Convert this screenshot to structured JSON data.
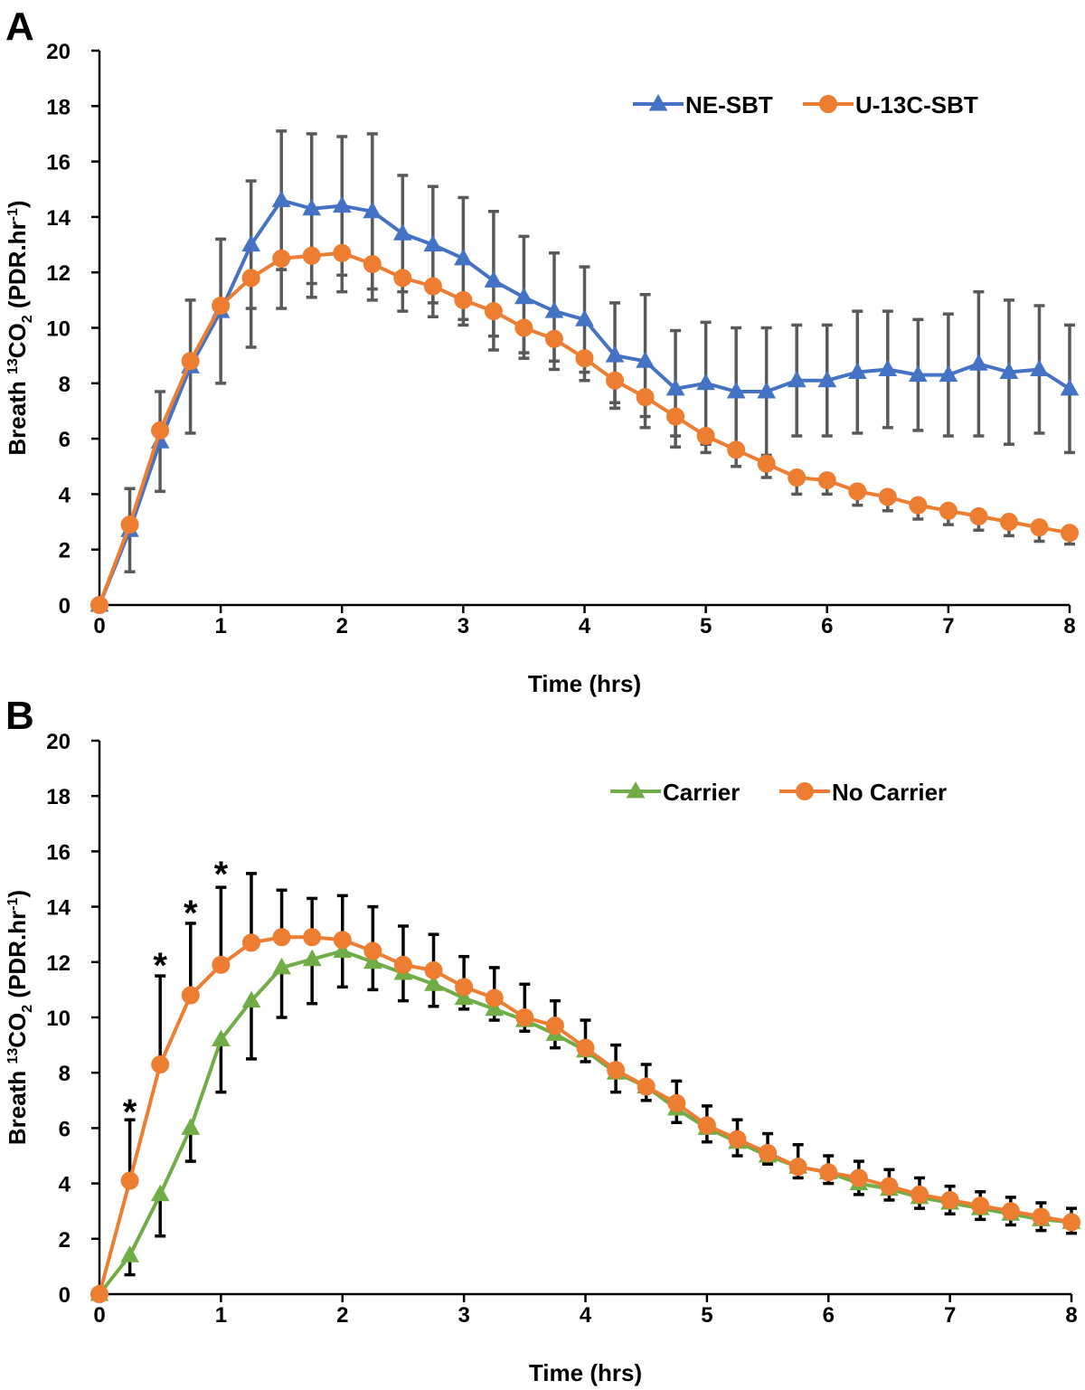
{
  "chart_data": [
    {
      "panel": "A",
      "type": "line",
      "xlabel": "Time (hrs)",
      "ylabel_prefix": "Breath ",
      "ylabel_sup": "13",
      "ylabel_main": "CO",
      "ylabel_sub": "2",
      "ylabel_unit": " (PDR.hr",
      "ylabel_unit_sup": "-1",
      "ylabel_close": ")",
      "xlim": [
        0,
        8
      ],
      "ylim": [
        0,
        20
      ],
      "xticks": [
        0,
        1,
        2,
        3,
        4,
        5,
        6,
        7,
        8
      ],
      "yticks": [
        0,
        2,
        4,
        6,
        8,
        10,
        12,
        14,
        16,
        18,
        20
      ],
      "x": [
        0,
        0.25,
        0.5,
        0.75,
        1,
        1.25,
        1.5,
        1.75,
        2,
        2.25,
        2.5,
        2.75,
        3,
        3.25,
        3.5,
        3.75,
        4,
        4.25,
        4.5,
        4.75,
        5,
        5.25,
        5.5,
        5.75,
        6,
        6.25,
        6.5,
        6.75,
        7,
        7.25,
        7.5,
        7.75,
        8
      ],
      "legend_position": "top-right",
      "error_color": "#595959",
      "annotations": [],
      "series": [
        {
          "name": "NE-SBT",
          "color": "#4472C4",
          "marker": "triangle",
          "values": [
            0,
            2.7,
            5.9,
            8.6,
            10.6,
            13.0,
            14.6,
            14.3,
            14.4,
            14.2,
            13.4,
            13.0,
            12.5,
            11.7,
            11.1,
            10.6,
            10.3,
            9.0,
            8.8,
            7.8,
            8.0,
            7.7,
            7.7,
            8.1,
            8.1,
            8.4,
            8.5,
            8.3,
            8.3,
            8.7,
            8.4,
            8.5,
            7.8
          ],
          "errors": [
            0,
            1.5,
            1.8,
            2.4,
            2.6,
            2.3,
            2.5,
            2.7,
            2.5,
            2.8,
            2.1,
            2.1,
            2.2,
            2.5,
            2.2,
            2.1,
            1.9,
            1.9,
            2.4,
            2.1,
            2.2,
            2.3,
            2.3,
            2.0,
            2.0,
            2.2,
            2.1,
            2.0,
            2.2,
            2.6,
            2.6,
            2.3,
            2.3
          ],
          "error_dir": "both"
        },
        {
          "name": "U-13C-SBT",
          "color": "#ED7D31",
          "marker": "circle",
          "values": [
            0,
            2.9,
            6.3,
            8.8,
            10.8,
            11.8,
            12.5,
            12.6,
            12.7,
            12.3,
            11.8,
            11.5,
            11.0,
            10.6,
            10.0,
            9.6,
            8.9,
            8.1,
            7.5,
            6.8,
            6.1,
            5.6,
            5.1,
            4.6,
            4.5,
            4.1,
            3.9,
            3.6,
            3.4,
            3.2,
            3.0,
            2.8,
            2.6
          ],
          "errors": [
            0,
            0,
            0,
            0,
            0,
            2.5,
            1.8,
            1.5,
            1.4,
            1.3,
            1.2,
            1.1,
            0.9,
            0.9,
            0.9,
            0.8,
            0.8,
            0.8,
            0.7,
            0.7,
            0.6,
            0.6,
            0.5,
            0.6,
            0.5,
            0.5,
            0.5,
            0.5,
            0.5,
            0.5,
            0.5,
            0.5,
            0.4
          ],
          "error_dir": "down"
        }
      ]
    },
    {
      "panel": "B",
      "type": "line",
      "xlabel": "Time (hrs)",
      "ylabel_prefix": "Breath ",
      "ylabel_sup": "13",
      "ylabel_main": "CO",
      "ylabel_sub": "2",
      "ylabel_unit": " (PDR.hr",
      "ylabel_unit_sup": "-1",
      "ylabel_close": ")",
      "xlim": [
        0,
        8
      ],
      "ylim": [
        0,
        20
      ],
      "xticks": [
        0,
        1,
        2,
        3,
        4,
        5,
        6,
        7,
        8
      ],
      "yticks": [
        0,
        2,
        4,
        6,
        8,
        10,
        12,
        14,
        16,
        18,
        20
      ],
      "x": [
        0,
        0.25,
        0.5,
        0.75,
        1,
        1.25,
        1.5,
        1.75,
        2,
        2.25,
        2.5,
        2.75,
        3,
        3.25,
        3.5,
        3.75,
        4,
        4.25,
        4.5,
        4.75,
        5,
        5.25,
        5.5,
        5.75,
        6,
        6.25,
        6.5,
        6.75,
        7,
        7.25,
        7.5,
        7.75,
        8
      ],
      "legend_position": "top-right",
      "error_color": "#000000",
      "annotations": [
        {
          "text": "*",
          "x": 0.25,
          "y": 6.4
        },
        {
          "text": "*",
          "x": 0.5,
          "y": 11.7
        },
        {
          "text": "*",
          "x": 0.75,
          "y": 13.6
        },
        {
          "text": "*",
          "x": 1.0,
          "y": 15.0
        }
      ],
      "series": [
        {
          "name": "Carrier",
          "color": "#70AD47",
          "marker": "triangle",
          "values": [
            0,
            1.4,
            3.6,
            6.0,
            9.2,
            10.6,
            11.8,
            12.1,
            12.4,
            12.0,
            11.6,
            11.2,
            10.7,
            10.3,
            9.9,
            9.4,
            8.8,
            8.0,
            7.5,
            6.7,
            6.0,
            5.5,
            5.0,
            4.6,
            4.4,
            4.0,
            3.8,
            3.5,
            3.3,
            3.1,
            2.9,
            2.7,
            2.6
          ],
          "errors": [
            0,
            0.7,
            1.5,
            1.2,
            1.9,
            2.1,
            1.8,
            1.6,
            1.3,
            1.0,
            1.0,
            0.8,
            0.4,
            0.4,
            0.4,
            0.5,
            0.4,
            0.7,
            0.5,
            0.5,
            0.5,
            0.5,
            0.3,
            0.4,
            0.4,
            0.4,
            0.4,
            0.4,
            0.4,
            0.4,
            0.4,
            0.4,
            0.4
          ],
          "error_dir": "down"
        },
        {
          "name": "No Carrier",
          "color": "#ED7D31",
          "marker": "circle",
          "values": [
            0,
            4.1,
            8.3,
            10.8,
            11.9,
            12.7,
            12.9,
            12.9,
            12.8,
            12.4,
            11.9,
            11.7,
            11.1,
            10.7,
            10.0,
            9.7,
            8.9,
            8.1,
            7.5,
            6.9,
            6.1,
            5.6,
            5.1,
            4.6,
            4.4,
            4.2,
            3.9,
            3.6,
            3.4,
            3.2,
            3.0,
            2.8,
            2.6
          ],
          "errors": [
            0,
            2.2,
            3.2,
            2.6,
            2.8,
            2.5,
            1.7,
            1.4,
            1.6,
            1.6,
            1.4,
            1.3,
            1.1,
            1.1,
            1.2,
            0.9,
            1.0,
            0.9,
            0.8,
            0.8,
            0.7,
            0.7,
            0.7,
            0.8,
            0.6,
            0.6,
            0.6,
            0.6,
            0.5,
            0.5,
            0.5,
            0.5,
            0.5
          ],
          "error_dir": "up"
        }
      ]
    }
  ]
}
